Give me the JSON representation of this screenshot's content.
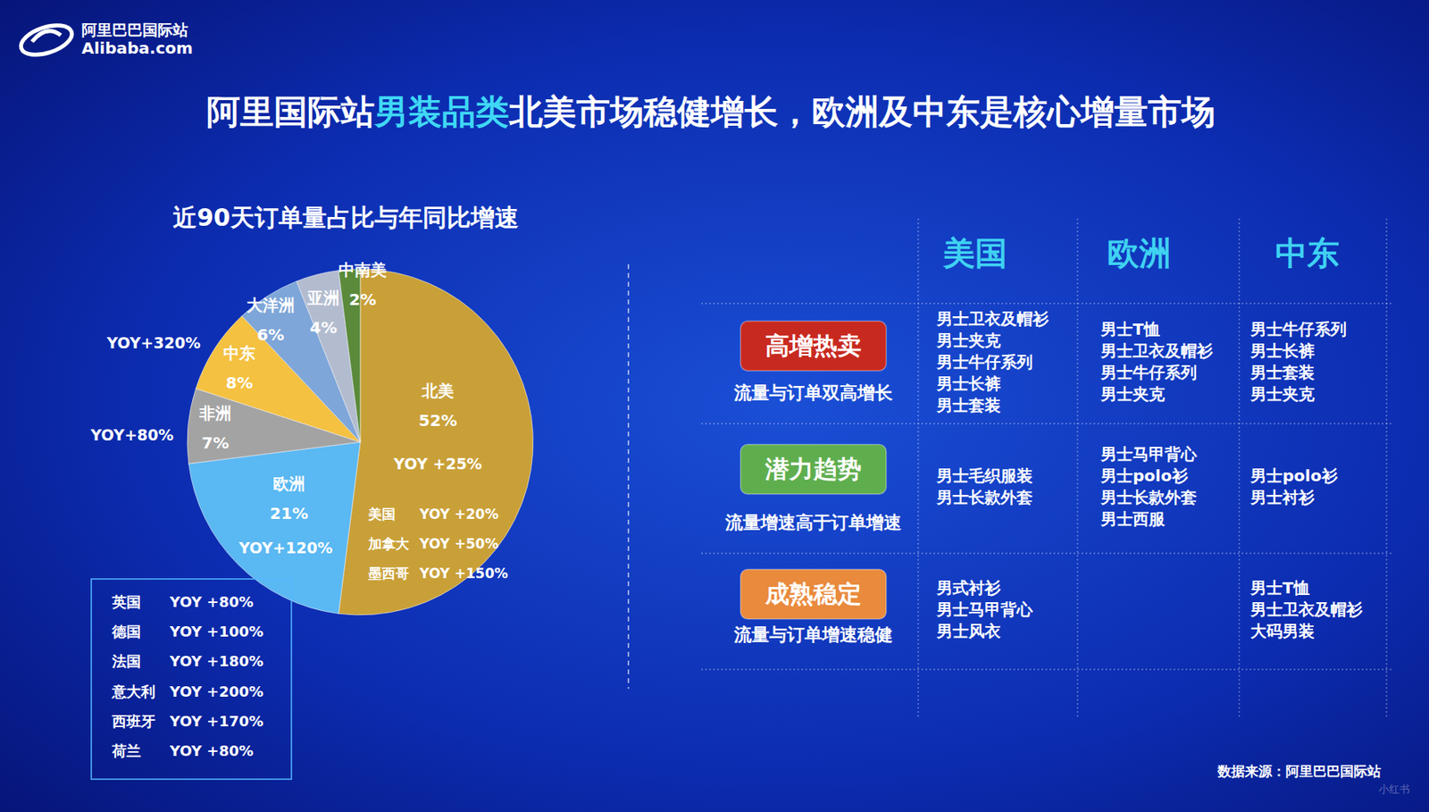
{
  "header": {
    "logo_cn": "阿里巴巴国际站",
    "logo_en": "Alibaba.com",
    "title_parts": [
      "阿里国际站",
      "男装品类",
      "北美市场稳健增长，欧洲及中东是核心增量市场"
    ]
  },
  "chart_data": {
    "type": "pie",
    "title": "近90天订单量占比与年同比增速",
    "categories": [
      "北美",
      "欧洲",
      "非洲",
      "中东",
      "大洋洲",
      "亚洲",
      "中南美"
    ],
    "values": [
      52,
      21,
      7,
      8,
      6,
      4,
      2
    ],
    "value_labels": [
      "52%",
      "21%",
      "7%",
      "8%",
      "6%",
      "4%",
      "2%"
    ],
    "data_labels": true,
    "colors": [
      "#c9a038",
      "#5ab8f2",
      "#a3a3a3",
      "#f4c141",
      "#7ea6d8",
      "#b3bccf",
      "#5a8a3a"
    ],
    "yoy_labels": [
      "YOY +25%",
      "YOY+120%",
      "YOY+80%",
      "YOY+320%",
      null,
      null,
      null
    ],
    "north_america_markets": [
      {
        "name": "美国",
        "yoy": "YOY +20%"
      },
      {
        "name": "加拿大",
        "yoy": "YOY +50%"
      },
      {
        "name": "墨西哥",
        "yoy": "YOY +150%"
      }
    ],
    "europe_markets": [
      {
        "name": "英国",
        "yoy": "YOY +80%"
      },
      {
        "name": "德国",
        "yoy": "YOY +100%"
      },
      {
        "name": "法国",
        "yoy": "YOY +180%"
      },
      {
        "name": "意大利",
        "yoy": "YOY +200%"
      },
      {
        "name": "西班牙",
        "yoy": "YOY +170%"
      },
      {
        "name": "荷兰",
        "yoy": "YOY +80%"
      }
    ]
  },
  "table": {
    "columns": [
      "美国",
      "欧洲",
      "中东"
    ],
    "rows": [
      {
        "tag": "高增热卖",
        "description": "流量与订单双高增长",
        "cells": [
          [
            "男士卫衣及帽衫",
            "男士夹克",
            "男士牛仔系列",
            "男士长裤",
            "男士套装"
          ],
          [
            "男士T恤",
            "男士卫衣及帽衫",
            "男士牛仔系列",
            "男士夹克"
          ],
          [
            "男士牛仔系列",
            "男士长裤",
            "男士套装",
            "男士夹克"
          ]
        ]
      },
      {
        "tag": "潜力趋势",
        "description": "流量增速高于订单增速",
        "cells": [
          [
            "男士毛织服装",
            "男士长款外套"
          ],
          [
            "男士马甲背心",
            "男士polo衫",
            "男士长款外套",
            "男士西服"
          ],
          [
            "男士polo衫",
            "男士衬衫"
          ]
        ]
      },
      {
        "tag": "成熟稳定",
        "description": "流量与订单增速稳健",
        "cells": [
          [
            "男式衬衫",
            "男士马甲背心",
            "男士风衣"
          ],
          [],
          [
            "男士T恤",
            "男士卫衣及帽衫",
            "大码男装"
          ]
        ]
      }
    ]
  },
  "footer": {
    "source": "数据来源：阿里巴巴国际站",
    "watermark": "小红书"
  }
}
